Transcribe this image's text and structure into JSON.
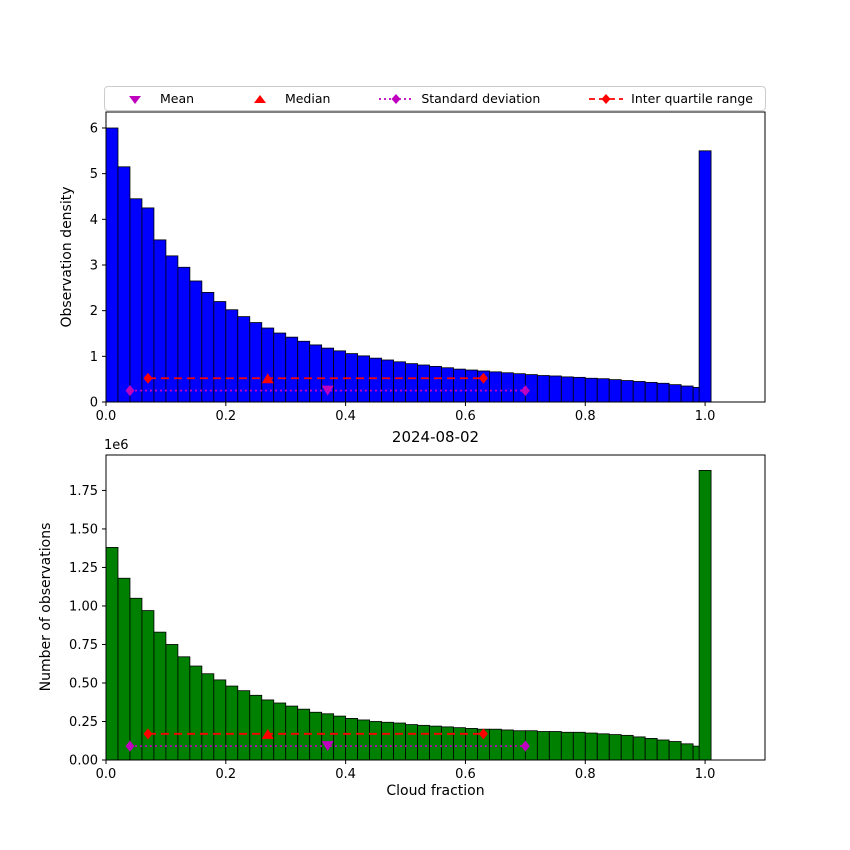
{
  "colors": {
    "figure_background": "#ffffff",
    "bar_edge": "#000000",
    "mean_std_color": "#bf00bf",
    "median_iqr_color": "#ff0000",
    "legend_border": "#cccccc"
  },
  "legend": {
    "position": "above-top-axes",
    "items": [
      {
        "label": "Mean",
        "marker": "triangle-down",
        "color": "#bf00bf"
      },
      {
        "label": "Median",
        "marker": "triangle-up",
        "color": "#ff0000"
      },
      {
        "label": "Standard deviation",
        "marker": "diamond-dotted-line",
        "color": "#bf00bf"
      },
      {
        "label": "Inter quartile range",
        "marker": "diamond-dashed-line",
        "color": "#ff0000"
      }
    ]
  },
  "chart_data": [
    {
      "type": "bar",
      "name": "observation-density-histogram",
      "title": "",
      "xlabel": "",
      "ylabel": "Observation density",
      "offset_text": "",
      "grid": false,
      "bar_color": "#0000ff",
      "bin_start": 0.0,
      "bin_width": 0.02,
      "values": [
        6.0,
        5.15,
        4.45,
        4.25,
        3.55,
        3.2,
        2.95,
        2.65,
        2.4,
        2.2,
        2.02,
        1.87,
        1.74,
        1.62,
        1.51,
        1.42,
        1.33,
        1.25,
        1.18,
        1.12,
        1.06,
        1.01,
        0.96,
        0.92,
        0.88,
        0.84,
        0.81,
        0.78,
        0.75,
        0.72,
        0.7,
        0.68,
        0.66,
        0.64,
        0.62,
        0.6,
        0.58,
        0.57,
        0.55,
        0.54,
        0.52,
        0.51,
        0.49,
        0.47,
        0.45,
        0.43,
        0.41,
        0.38,
        0.35,
        0.32
      ],
      "last_bar": {
        "x0": 0.99,
        "x1": 1.01,
        "value": 5.5
      },
      "xlim": [
        0,
        1.1
      ],
      "ylim": [
        0,
        6.35
      ],
      "xticks": [
        0,
        0.2,
        0.4,
        0.6,
        0.8,
        1.0
      ],
      "xtick_labels": [
        "0.0",
        "0.2",
        "0.4",
        "0.6",
        "0.8",
        "1.0"
      ],
      "yticks": [
        0,
        1,
        2,
        3,
        4,
        5,
        6
      ],
      "ytick_labels": [
        "0",
        "1",
        "2",
        "3",
        "4",
        "5",
        "6"
      ],
      "stats": {
        "mean": {
          "x": 0.37,
          "y": 0.25
        },
        "median": {
          "x": 0.27,
          "y": 0.52
        },
        "std_line": {
          "x1": 0.04,
          "x2": 0.7,
          "y": 0.25
        },
        "iqr_line": {
          "x1": 0.07,
          "x2": 0.63,
          "y": 0.52
        }
      }
    },
    {
      "type": "bar",
      "name": "observation-count-histogram",
      "title": "2024-08-02",
      "xlabel": "Cloud fraction",
      "ylabel": "Number of observations",
      "offset_text": "1e6",
      "grid": false,
      "bar_color": "#008000",
      "bin_start": 0.0,
      "bin_width": 0.02,
      "values": [
        1.38,
        1.18,
        1.05,
        0.97,
        0.83,
        0.75,
        0.67,
        0.61,
        0.56,
        0.52,
        0.48,
        0.45,
        0.42,
        0.39,
        0.37,
        0.35,
        0.33,
        0.31,
        0.3,
        0.285,
        0.27,
        0.26,
        0.25,
        0.245,
        0.24,
        0.23,
        0.225,
        0.22,
        0.215,
        0.21,
        0.205,
        0.2,
        0.2,
        0.195,
        0.19,
        0.19,
        0.185,
        0.185,
        0.18,
        0.18,
        0.175,
        0.17,
        0.165,
        0.16,
        0.15,
        0.14,
        0.13,
        0.12,
        0.105,
        0.09
      ],
      "last_bar": {
        "x0": 0.99,
        "x1": 1.01,
        "value": 1.88
      },
      "xlim": [
        0,
        1.1
      ],
      "ylim": [
        0,
        1.98
      ],
      "xticks": [
        0,
        0.2,
        0.4,
        0.6,
        0.8,
        1.0
      ],
      "xtick_labels": [
        "0.0",
        "0.2",
        "0.4",
        "0.6",
        "0.8",
        "1.0"
      ],
      "yticks": [
        0,
        0.25,
        0.5,
        0.75,
        1.0,
        1.25,
        1.5,
        1.75
      ],
      "ytick_labels": [
        "0.00",
        "0.25",
        "0.50",
        "0.75",
        "1.00",
        "1.25",
        "1.50",
        "1.75"
      ],
      "stats": {
        "mean": {
          "x": 0.37,
          "y": 0.09
        },
        "median": {
          "x": 0.27,
          "y": 0.17
        },
        "std_line": {
          "x1": 0.04,
          "x2": 0.7,
          "y": 0.09
        },
        "iqr_line": {
          "x1": 0.07,
          "x2": 0.63,
          "y": 0.17
        }
      }
    }
  ]
}
